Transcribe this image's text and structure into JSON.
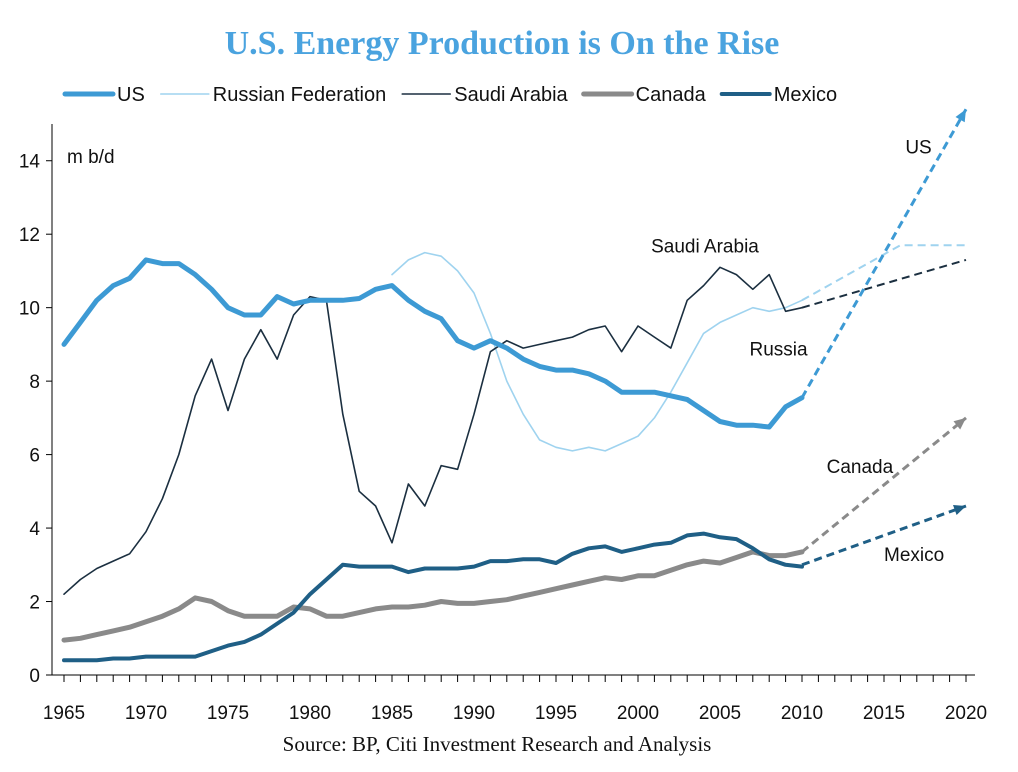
{
  "colors": {
    "title": "#4aa3df",
    "US": "#3d9ad4",
    "Russian Federation": "#9fd3ef",
    "Saudi Arabia": "#1b2f40",
    "Canada": "#8a8a8a",
    "Mexico": "#1f5f86"
  },
  "chart_data": {
    "type": "line",
    "title": "U.S. Energy Production is On the Rise",
    "ylabel": "m b/d",
    "source": "Source: BP, Citi Investment Research and Analysis",
    "xlim": [
      1965,
      2020
    ],
    "ylim": [
      0,
      15
    ],
    "yticks": [
      0,
      2,
      4,
      6,
      8,
      10,
      12,
      14
    ],
    "xticks": [
      1965,
      1970,
      1975,
      1980,
      1985,
      1990,
      1995,
      2000,
      2005,
      2010,
      2015,
      2020
    ],
    "legend_position": "top",
    "grid": false,
    "series": [
      {
        "name": "US",
        "x": [
          1965,
          1966,
          1967,
          1968,
          1969,
          1970,
          1971,
          1972,
          1973,
          1974,
          1975,
          1976,
          1977,
          1978,
          1979,
          1980,
          1981,
          1982,
          1983,
          1984,
          1985,
          1986,
          1987,
          1988,
          1989,
          1990,
          1991,
          1992,
          1993,
          1994,
          1995,
          1996,
          1997,
          1998,
          1999,
          2000,
          2001,
          2002,
          2003,
          2004,
          2005,
          2006,
          2007,
          2008,
          2009,
          2010
        ],
        "y": [
          9.0,
          9.6,
          10.2,
          10.6,
          10.8,
          11.3,
          11.2,
          11.2,
          10.9,
          10.5,
          10.0,
          9.8,
          9.8,
          10.3,
          10.1,
          10.2,
          10.2,
          10.2,
          10.25,
          10.5,
          10.6,
          10.2,
          9.9,
          9.7,
          9.1,
          8.9,
          9.1,
          8.9,
          8.6,
          8.4,
          8.3,
          8.3,
          8.2,
          8.0,
          7.7,
          7.7,
          7.7,
          7.6,
          7.5,
          7.2,
          6.9,
          6.8,
          6.8,
          6.75,
          7.3,
          7.55
        ],
        "projection": {
          "x": [
            2010,
            2020
          ],
          "y": [
            7.55,
            15.4
          ]
        }
      },
      {
        "name": "Russian Federation",
        "x": [
          1985,
          1986,
          1987,
          1988,
          1989,
          1990,
          1991,
          1992,
          1993,
          1994,
          1995,
          1996,
          1997,
          1998,
          1999,
          2000,
          2001,
          2002,
          2003,
          2004,
          2005,
          2006,
          2007,
          2008,
          2009,
          2010
        ],
        "y": [
          10.9,
          11.3,
          11.5,
          11.4,
          11.0,
          10.4,
          9.3,
          8.0,
          7.1,
          6.4,
          6.2,
          6.1,
          6.2,
          6.1,
          6.3,
          6.5,
          7.0,
          7.7,
          8.5,
          9.3,
          9.6,
          9.8,
          10.0,
          9.9,
          10.0,
          10.2
        ],
        "projection": {
          "x": [
            2010,
            2016,
            2020
          ],
          "y": [
            10.2,
            11.7,
            11.7
          ]
        }
      },
      {
        "name": "Saudi Arabia",
        "x": [
          1965,
          1966,
          1967,
          1968,
          1969,
          1970,
          1971,
          1972,
          1973,
          1974,
          1975,
          1976,
          1977,
          1978,
          1979,
          1980,
          1981,
          1982,
          1983,
          1984,
          1985,
          1986,
          1987,
          1988,
          1989,
          1990,
          1991,
          1992,
          1993,
          1994,
          1995,
          1996,
          1997,
          1998,
          1999,
          2000,
          2001,
          2002,
          2003,
          2004,
          2005,
          2006,
          2007,
          2008,
          2009,
          2010
        ],
        "y": [
          2.2,
          2.6,
          2.9,
          3.1,
          3.3,
          3.9,
          4.8,
          6.0,
          7.6,
          8.6,
          7.2,
          8.6,
          9.4,
          8.6,
          9.8,
          10.3,
          10.2,
          7.1,
          5.0,
          4.6,
          3.6,
          5.2,
          4.6,
          5.7,
          5.6,
          7.1,
          8.8,
          9.1,
          8.9,
          9.0,
          9.1,
          9.2,
          9.4,
          9.5,
          8.8,
          9.5,
          9.2,
          8.9,
          10.2,
          10.6,
          11.1,
          10.9,
          10.5,
          10.9,
          9.9,
          10.0
        ],
        "projection": {
          "x": [
            2010,
            2020
          ],
          "y": [
            10.0,
            11.3
          ]
        }
      },
      {
        "name": "Canada",
        "x": [
          1965,
          1966,
          1967,
          1968,
          1969,
          1970,
          1971,
          1972,
          1973,
          1974,
          1975,
          1976,
          1977,
          1978,
          1979,
          1980,
          1981,
          1982,
          1983,
          1984,
          1985,
          1986,
          1987,
          1988,
          1989,
          1990,
          1991,
          1992,
          1993,
          1994,
          1995,
          1996,
          1997,
          1998,
          1999,
          2000,
          2001,
          2002,
          2003,
          2004,
          2005,
          2006,
          2007,
          2008,
          2009,
          2010
        ],
        "y": [
          0.95,
          1.0,
          1.1,
          1.2,
          1.3,
          1.45,
          1.6,
          1.8,
          2.1,
          2.0,
          1.75,
          1.6,
          1.6,
          1.6,
          1.85,
          1.8,
          1.6,
          1.6,
          1.7,
          1.8,
          1.85,
          1.85,
          1.9,
          2.0,
          1.95,
          1.95,
          2.0,
          2.05,
          2.15,
          2.25,
          2.35,
          2.45,
          2.55,
          2.65,
          2.6,
          2.7,
          2.7,
          2.85,
          3.0,
          3.1,
          3.05,
          3.2,
          3.35,
          3.25,
          3.25,
          3.35
        ],
        "projection": {
          "x": [
            2010,
            2020
          ],
          "y": [
            3.35,
            7.0
          ]
        }
      },
      {
        "name": "Mexico",
        "x": [
          1965,
          1966,
          1967,
          1968,
          1969,
          1970,
          1971,
          1972,
          1973,
          1974,
          1975,
          1976,
          1977,
          1978,
          1979,
          1980,
          1981,
          1982,
          1983,
          1984,
          1985,
          1986,
          1987,
          1988,
          1989,
          1990,
          1991,
          1992,
          1993,
          1994,
          1995,
          1996,
          1997,
          1998,
          1999,
          2000,
          2001,
          2002,
          2003,
          2004,
          2005,
          2006,
          2007,
          2008,
          2009,
          2010
        ],
        "y": [
          0.4,
          0.4,
          0.4,
          0.45,
          0.45,
          0.5,
          0.5,
          0.5,
          0.5,
          0.65,
          0.8,
          0.9,
          1.1,
          1.4,
          1.7,
          2.2,
          2.6,
          3.0,
          2.95,
          2.95,
          2.95,
          2.8,
          2.9,
          2.9,
          2.9,
          2.95,
          3.1,
          3.1,
          3.15,
          3.15,
          3.05,
          3.3,
          3.45,
          3.5,
          3.35,
          3.45,
          3.55,
          3.6,
          3.8,
          3.85,
          3.75,
          3.7,
          3.45,
          3.15,
          3.0,
          2.95
        ],
        "projection": {
          "x": [
            2010,
            2020
          ],
          "y": [
            3.0,
            4.6
          ]
        }
      }
    ],
    "annotations": [
      {
        "text": "US",
        "x": 2016.3,
        "y": 14.2
      },
      {
        "text": "Saudi Arabia",
        "x": 2000.8,
        "y": 11.5
      },
      {
        "text": "Russia",
        "x": 2006.8,
        "y": 8.7
      },
      {
        "text": "Canada",
        "x": 2011.5,
        "y": 5.5
      },
      {
        "text": "Mexico",
        "x": 2015.0,
        "y": 3.1
      }
    ]
  }
}
